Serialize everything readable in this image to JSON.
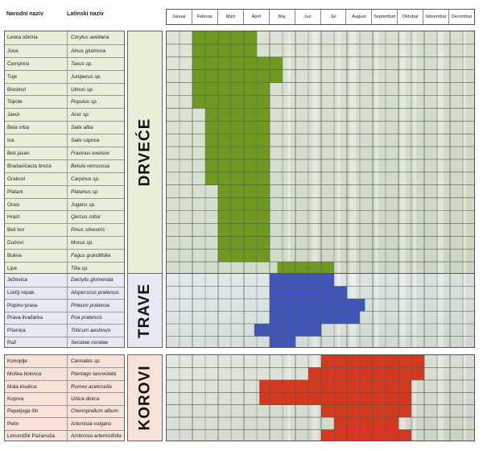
{
  "header": {
    "common_name": "Narodni naziv",
    "latin_name": "Latinski naziv"
  },
  "months": [
    "Januar",
    "Februar",
    "Mart",
    "April",
    "Maj",
    "Jun",
    "Jul",
    "August",
    "Septembar",
    "Oktobar",
    "Novembar",
    "Decembar"
  ],
  "colors": {
    "drvece": "#6f9a1f",
    "trave": "#3f56b8",
    "korovi": "#d2391f",
    "drvece_panel": "#e8efd8",
    "trave_panel": "#e6e8f4",
    "korovi_panel": "#f6e2d6"
  },
  "chart_data": {
    "type": "heatmap",
    "unit": "month",
    "groups": [
      {
        "name": "DRVEĆE",
        "plants": [
          {
            "common": "Leska obična",
            "latin": "Corylus avellana",
            "start": 1,
            "end": 3.5
          },
          {
            "common": "Jova",
            "latin": "Alnus glutinosa",
            "start": 1,
            "end": 3.5
          },
          {
            "common": "Čempresi",
            "latin": "Taxus sp.",
            "start": 1,
            "end": 4.5
          },
          {
            "common": "Tuje",
            "latin": "Juniperus sp.",
            "start": 1,
            "end": 4.5
          },
          {
            "common": "Brestovi",
            "latin": "Ulmus sp.",
            "start": 1,
            "end": 4
          },
          {
            "common": "Topole",
            "latin": "Populus sp.",
            "start": 1,
            "end": 4
          },
          {
            "common": "Javor",
            "latin": "Acer sp.",
            "start": 1.5,
            "end": 4
          },
          {
            "common": "Bela vrba",
            "latin": "Salix alba",
            "start": 1.5,
            "end": 4
          },
          {
            "common": "Iva",
            "latin": "Salix caprea",
            "start": 1.5,
            "end": 4
          },
          {
            "common": "Beli jasen",
            "latin": "Fraxinus exelsior",
            "start": 1.5,
            "end": 4
          },
          {
            "common": "Bradavičasta breza",
            "latin": "Betula verrucosa",
            "start": 1.5,
            "end": 4
          },
          {
            "common": "Grabovi",
            "latin": "Carpinus sp.",
            "start": 1.5,
            "end": 4
          },
          {
            "common": "Platani",
            "latin": "Platanus sp",
            "start": 2,
            "end": 4
          },
          {
            "common": "Orasi",
            "latin": "Jugans sp.",
            "start": 2,
            "end": 4
          },
          {
            "common": "Hrast",
            "latin": "Qercus robur",
            "start": 2,
            "end": 4
          },
          {
            "common": "Beli bor",
            "latin": "Pinus silvestris",
            "start": 2,
            "end": 4
          },
          {
            "common": "Dudovi",
            "latin": "Morus sp.",
            "start": 2,
            "end": 4
          },
          {
            "common": "Bukva",
            "latin": "Fagus grandifolia",
            "start": 2,
            "end": 4
          },
          {
            "common": "Lipe",
            "latin": "Tilia sp.",
            "start": 4.3,
            "end": 6.5
          }
        ]
      },
      {
        "name": "TRAVE",
        "plants": [
          {
            "common": "Ježevica",
            "latin": "Dactylis glomerata",
            "start": 4,
            "end": 6.5
          },
          {
            "common": "Lisičji repak",
            "latin": "Alopecurus pratensis",
            "start": 4,
            "end": 7
          },
          {
            "common": "Popino prase",
            "latin": "Phleum pratense",
            "start": 4,
            "end": 7.7
          },
          {
            "common": "Prava livadarka",
            "latin": "Poa pratensis",
            "start": 4,
            "end": 7.5
          },
          {
            "common": "Pšenica",
            "latin": "Triticum aestivum",
            "start": 3.4,
            "end": 6
          },
          {
            "common": "Raž",
            "latin": "Secatae ceralae",
            "start": 4,
            "end": 5
          }
        ]
      },
      {
        "name": "KOROVI",
        "plants": [
          {
            "common": "Konoplje",
            "latin": "Cannabis sp.",
            "start": 6,
            "end": 10
          },
          {
            "common": "Muška bokvica",
            "latin": "Plantago lanceolata",
            "start": 5.5,
            "end": 10
          },
          {
            "common": "Mala kiselica",
            "latin": "Rumex acetosella",
            "start": 3.6,
            "end": 9.5
          },
          {
            "common": "Koprva",
            "latin": "Urtica dioica",
            "start": 3.6,
            "end": 9.5
          },
          {
            "common": "Pepeljuga štir",
            "latin": "Chenopodium album",
            "start": 6,
            "end": 9.5
          },
          {
            "common": "Pelin",
            "latin": "Artemisia vulgaris",
            "start": 6.5,
            "end": 9
          },
          {
            "common": "Limundžik Pazanuša",
            "latin": "Ambrosia artemisifolia",
            "start": 6,
            "end": 9.5
          }
        ]
      }
    ]
  }
}
